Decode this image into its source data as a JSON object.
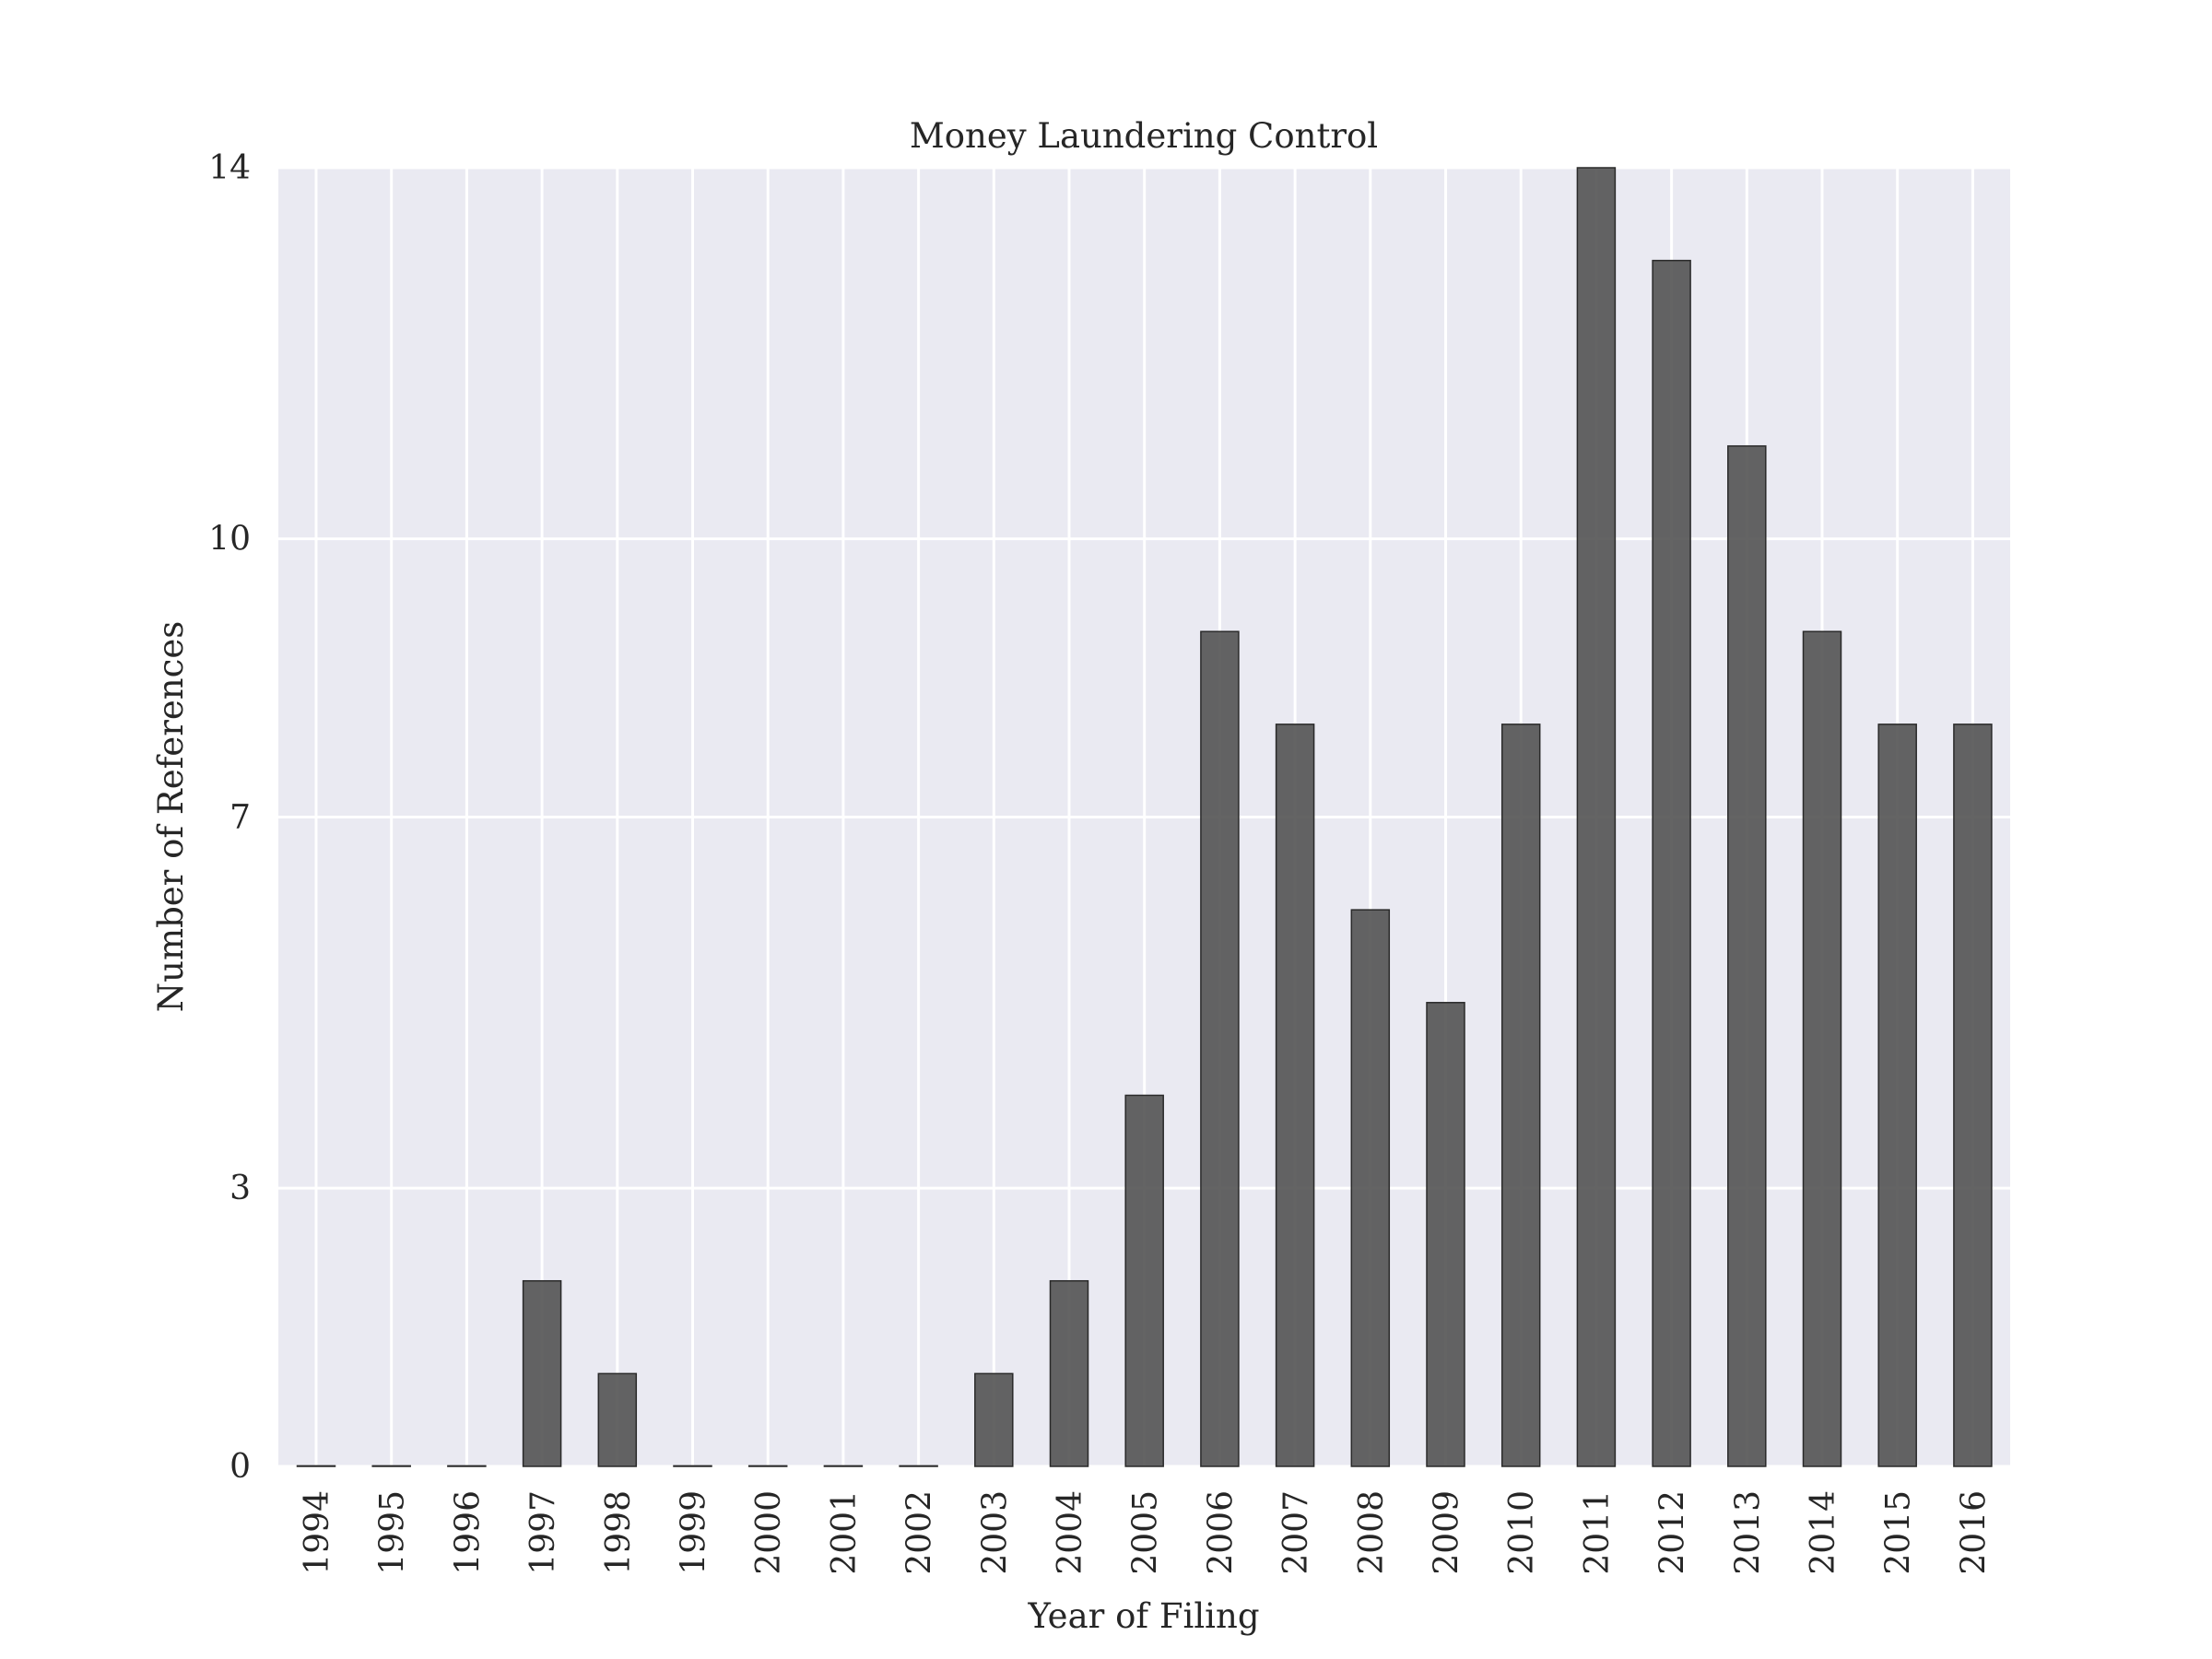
{
  "chart_data": {
    "type": "bar",
    "title": "Money Laundering Control",
    "xlabel": "Year of Filing",
    "ylabel": "Number of References",
    "categories": [
      "1994",
      "1995",
      "1996",
      "1997",
      "1998",
      "1999",
      "2000",
      "2001",
      "2002",
      "2003",
      "2004",
      "2005",
      "2006",
      "2007",
      "2008",
      "2009",
      "2010",
      "2011",
      "2012",
      "2013",
      "2014",
      "2015",
      "2016"
    ],
    "values": [
      0,
      0,
      0,
      2,
      1,
      0,
      0,
      0,
      0,
      1,
      2,
      4,
      9,
      8,
      6,
      5,
      8,
      14,
      13,
      11,
      9,
      8,
      8
    ],
    "yticks": [
      0,
      3,
      7,
      10,
      14
    ],
    "ytick_labels": [
      "0",
      "3",
      "7",
      "10",
      "14"
    ],
    "ylim": [
      0,
      14
    ],
    "grid": true,
    "legend": "none",
    "colors": {
      "background": "#eaeaf2",
      "grid": "#ffffff",
      "bar": "#4f4f4f",
      "text": "#262626"
    }
  }
}
